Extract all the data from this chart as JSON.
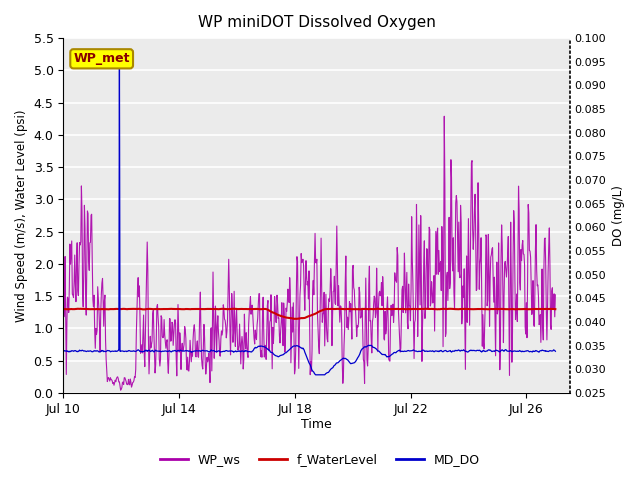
{
  "title": "WP miniDOT Dissolved Oxygen",
  "xlabel": "Time",
  "ylabel_left": "Wind Speed (m/s), Water Level (psi)",
  "ylabel_right": "DO (mg/L)",
  "xlim_days": [
    0,
    17.5
  ],
  "ylim_left": [
    0.0,
    5.5
  ],
  "ylim_right": [
    0.025,
    0.1
  ],
  "yticks_left": [
    0.0,
    0.5,
    1.0,
    1.5,
    2.0,
    2.5,
    3.0,
    3.5,
    4.0,
    4.5,
    5.0,
    5.5
  ],
  "yticks_right": [
    0.025,
    0.03,
    0.035,
    0.04,
    0.045,
    0.05,
    0.055,
    0.06,
    0.065,
    0.07,
    0.075,
    0.08,
    0.085,
    0.09,
    0.095,
    0.1
  ],
  "xtick_labels": [
    "Jul 10",
    "Jul 14",
    "Jul 18",
    "Jul 22",
    "Jul 26"
  ],
  "xtick_positions": [
    0,
    4,
    8,
    12,
    16
  ],
  "color_ws": "#AA00AA",
  "color_wl": "#CC0000",
  "color_do": "#0000CC",
  "legend_label_ws": "WP_ws",
  "legend_label_wl": "f_WaterLevel",
  "legend_label_do": "MD_DO",
  "annotation_box_text": "WP_met",
  "annotation_box_color": "#FFFF00",
  "annotation_box_edge": "#AA8800",
  "annotation_text_color": "#880000",
  "background_plot": "#EBEBEB",
  "background_fig": "#FFFFFF",
  "grid_color": "#FFFFFF",
  "seed": 42
}
